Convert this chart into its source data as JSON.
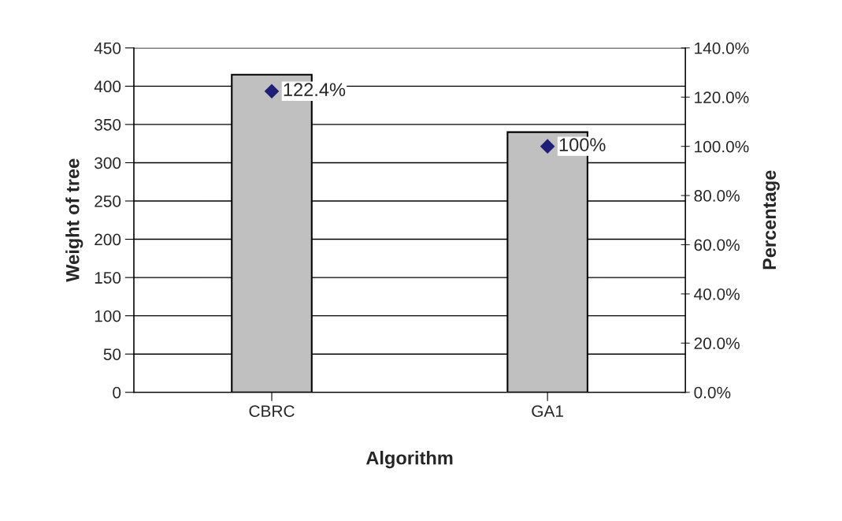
{
  "chart_data": {
    "type": "bar",
    "categories": [
      "CBRC",
      "GA1"
    ],
    "xlabel": "Algorithm",
    "ylabel": "Weight of tree",
    "y2label": "Percentage",
    "series": [
      {
        "color": "#c0c0c0",
        "values": [
          415,
          340
        ]
      },
      {
        "type": "scatter",
        "axis": "y2",
        "color": "#1f1f78",
        "marker": "diamond",
        "values": [
          122.4,
          100
        ],
        "value_labels": [
          "122.4%",
          "100%"
        ]
      }
    ],
    "ylim": [
      0,
      450
    ],
    "yticks": [
      0,
      50,
      100,
      150,
      200,
      250,
      300,
      350,
      400,
      450
    ],
    "y2lim": [
      0,
      140
    ],
    "y2ticks": [
      {
        "value": 0,
        "label": "0.0%"
      },
      {
        "value": 20,
        "label": "20.0%"
      },
      {
        "value": 40,
        "label": "40.0%"
      },
      {
        "value": 60,
        "label": "60.0%"
      },
      {
        "value": 80,
        "label": "80.0%"
      },
      {
        "value": 100,
        "label": "100.0%"
      },
      {
        "value": 120,
        "label": "120.0%"
      },
      {
        "value": 140,
        "label": "140.0%"
      }
    ],
    "grid": "y",
    "legend": false
  }
}
